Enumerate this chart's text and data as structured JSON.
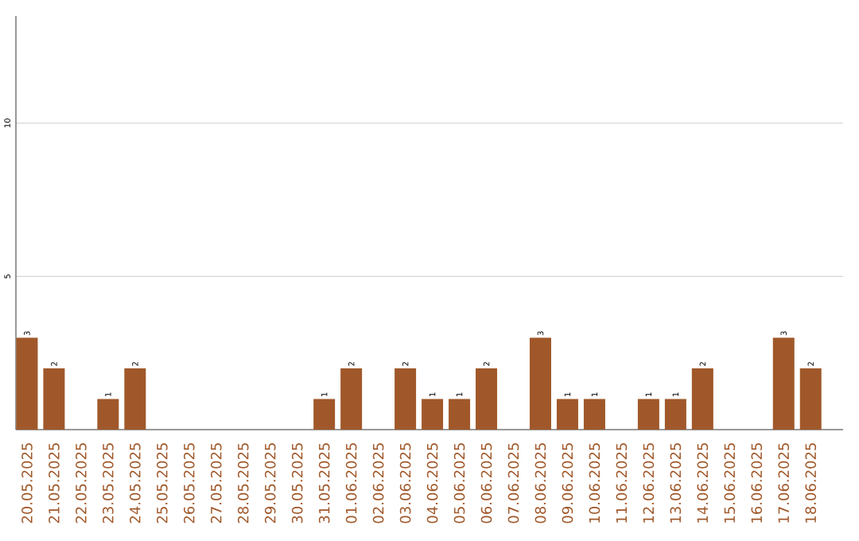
{
  "chart_data": {
    "type": "bar",
    "categories": [
      "20.05.2025",
      "21.05.2025",
      "22.05.2025",
      "23.05.2025",
      "24.05.2025",
      "25.05.2025",
      "26.05.2025",
      "27.05.2025",
      "28.05.2025",
      "29.05.2025",
      "30.05.2025",
      "31.05.2025",
      "01.06.2025",
      "02.06.2025",
      "03.06.2025",
      "04.06.2025",
      "05.06.2025",
      "06.06.2025",
      "07.06.2025",
      "08.06.2025",
      "09.06.2025",
      "10.06.2025",
      "11.06.2025",
      "12.06.2025",
      "13.06.2025",
      "14.06.2025",
      "15.06.2025",
      "16.06.2025",
      "17.06.2025",
      "18.06.2025"
    ],
    "values": [
      3,
      2,
      0,
      1,
      2,
      0,
      0,
      0,
      0,
      0,
      0,
      1,
      2,
      0,
      2,
      1,
      1,
      2,
      0,
      3,
      1,
      1,
      0,
      1,
      1,
      2,
      0,
      0,
      3,
      2
    ],
    "value_labels": [
      "3",
      "2",
      null,
      "1",
      "2",
      null,
      null,
      null,
      null,
      null,
      null,
      "1",
      "2",
      null,
      "2",
      "1",
      "1",
      "2",
      null,
      "3",
      "1",
      "1",
      null,
      "1",
      "1",
      "2",
      null,
      null,
      "3",
      "2"
    ],
    "color": "#a0582a",
    "ylim": [
      0,
      13.5
    ],
    "yticks": [
      5,
      10
    ],
    "grid": "y"
  }
}
